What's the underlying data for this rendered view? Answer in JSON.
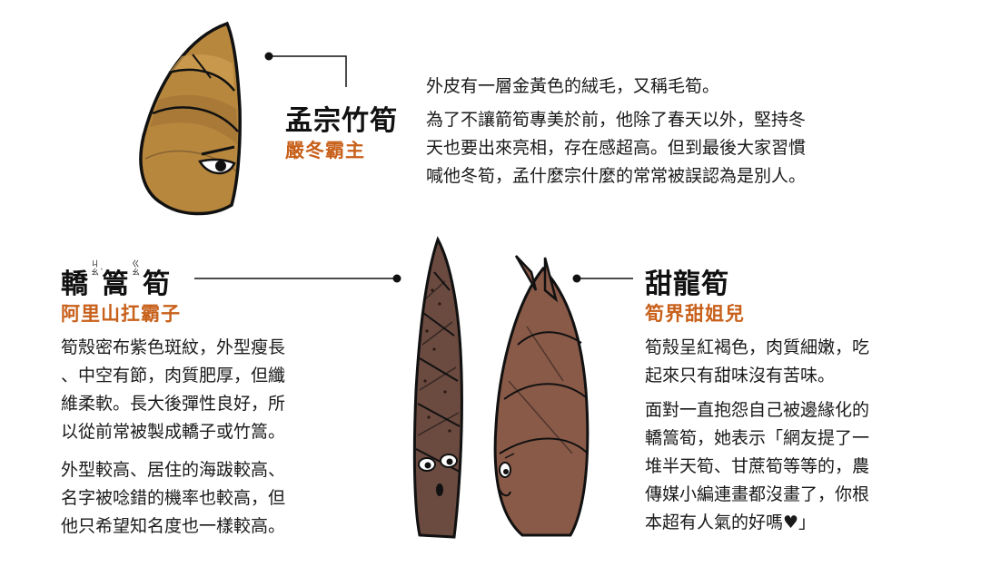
{
  "colors": {
    "accent": "#c8601a",
    "text": "#1a1a1a",
    "line": "#111111"
  },
  "shoots": [
    {
      "id": "moso",
      "title": "孟宗竹筍",
      "subtitle": "嚴冬霸主",
      "intro": "外皮有一層金黃色的絨毛，又稱毛筍。",
      "lines": [
        "為了不讓箭筍專美於前，他除了春天以外，堅持冬",
        "天也要出來亮相，存在感超高。但到最後大家習慣",
        "喊他冬筍，孟什麼宗什麼的常常被誤認為是別人。"
      ]
    },
    {
      "id": "jiaoyu",
      "title_part1": "轎",
      "title_zhuyin1": [
        "ㄐ",
        "ㄠˋ"
      ],
      "title_part2": "篙",
      "title_zhuyin2": [
        "ㄍ",
        "ㄠ"
      ],
      "title_part3": "筍",
      "subtitle": "阿里山扛霸子",
      "para1": [
        "筍殼密布紫色斑紋，外型瘦長",
        "、中空有節，肉質肥厚，但纖",
        "維柔軟。長大後彈性良好，所",
        "以從前常被製成轎子或竹篙。"
      ],
      "para2": [
        "外型較高、居住的海跋較高、",
        "名字被唸錯的機率也較高，但",
        "他只希望知名度也一樣較高。"
      ]
    },
    {
      "id": "sweet",
      "title": "甜龍筍",
      "subtitle": "筍界甜姐兒",
      "para1": [
        "筍殼呈紅褐色，肉質細嫩，吃",
        "起來只有甜味沒有苦味。"
      ],
      "para2": [
        "面對一直抱怨自己被邊緣化的",
        "轎篙筍，她表示「網友提了一",
        "堆半天筍、甘蔗筍等等的，農",
        "傳媒小編連畫都沒畫了，你根",
        "本超有人氣的好嗎♥」"
      ]
    }
  ]
}
